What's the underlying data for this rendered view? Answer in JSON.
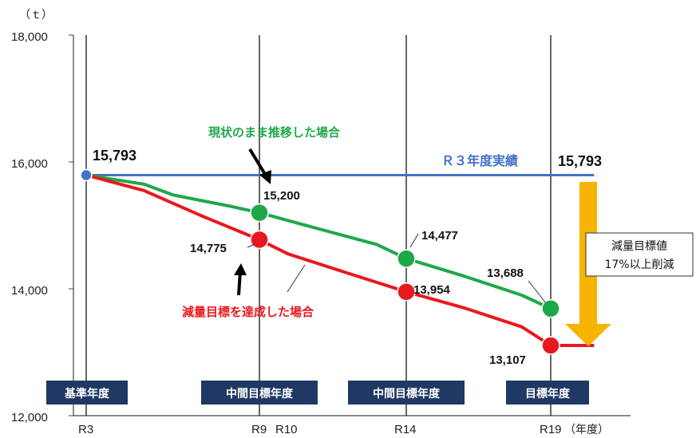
{
  "chart_data": {
    "type": "line",
    "unit_label": "（ｔ）",
    "x_unit_label": "（年度）",
    "ylim": [
      12000,
      18000
    ],
    "y_ticks": [
      "18,000",
      "16,000",
      "14,000",
      "12,000"
    ],
    "y_tick_values": [
      18000,
      16000,
      14000,
      12000
    ],
    "x_categories": [
      "R3",
      "R9",
      "R10",
      "R14",
      "R19"
    ],
    "x_values": [
      3,
      9,
      10,
      14,
      19
    ],
    "x_range": [
      3,
      20.5
    ],
    "series": [
      {
        "name": "Ｒ３年度実績",
        "color": "#4472C4",
        "points": [
          [
            3,
            15793
          ],
          [
            20.5,
            15793
          ]
        ],
        "markers": [
          [
            3,
            15793
          ]
        ]
      },
      {
        "name": "現状のまま推移した場合",
        "color": "#1FA84A",
        "points": [
          [
            3,
            15793
          ],
          [
            5,
            15650
          ],
          [
            6,
            15480
          ],
          [
            8,
            15300
          ],
          [
            9,
            15200
          ],
          [
            11,
            14950
          ],
          [
            13,
            14700
          ],
          [
            14,
            14477
          ],
          [
            16,
            14200
          ],
          [
            18,
            13900
          ],
          [
            19,
            13688
          ]
        ],
        "markers": [
          [
            9,
            15200
          ],
          [
            14,
            14477
          ],
          [
            19,
            13688
          ]
        ]
      },
      {
        "name": "減量目標を達成した場合",
        "color": "#E8191E",
        "points": [
          [
            3,
            15793
          ],
          [
            5,
            15550
          ],
          [
            7,
            15150
          ],
          [
            9,
            14775
          ],
          [
            10,
            14550
          ],
          [
            12,
            14250
          ],
          [
            14,
            13954
          ],
          [
            16,
            13700
          ],
          [
            18,
            13400
          ],
          [
            19,
            13107
          ],
          [
            20.5,
            13107
          ]
        ],
        "markers": [
          [
            9,
            14775
          ],
          [
            14,
            13954
          ],
          [
            19,
            13107
          ]
        ]
      }
    ],
    "data_labels": {
      "base": "15,793",
      "base_right": "15,793",
      "cur_r9": "15,200",
      "cur_r14": "14,477",
      "cur_r19": "13,688",
      "red_r9": "14,775",
      "red_r14": "13,954",
      "red_r19": "13,107"
    },
    "annotations": {
      "actual": "Ｒ３年度実績",
      "current": "現状のまま推移した場合",
      "reduction": "減量目標を達成した場合",
      "target_line1": "減量目標値",
      "target_line2": "17%以上削減"
    },
    "badges": {
      "base_year": "基準年度",
      "mid_year_1": "中間目標年度",
      "mid_year_2": "中間目標年度",
      "target_year": "目標年度"
    },
    "colors": {
      "blue": "#4472C4",
      "green": "#1FA84A",
      "red": "#E8191E",
      "navy_badge": "#1F3864",
      "arrow_yellow": "#F5B400"
    }
  }
}
